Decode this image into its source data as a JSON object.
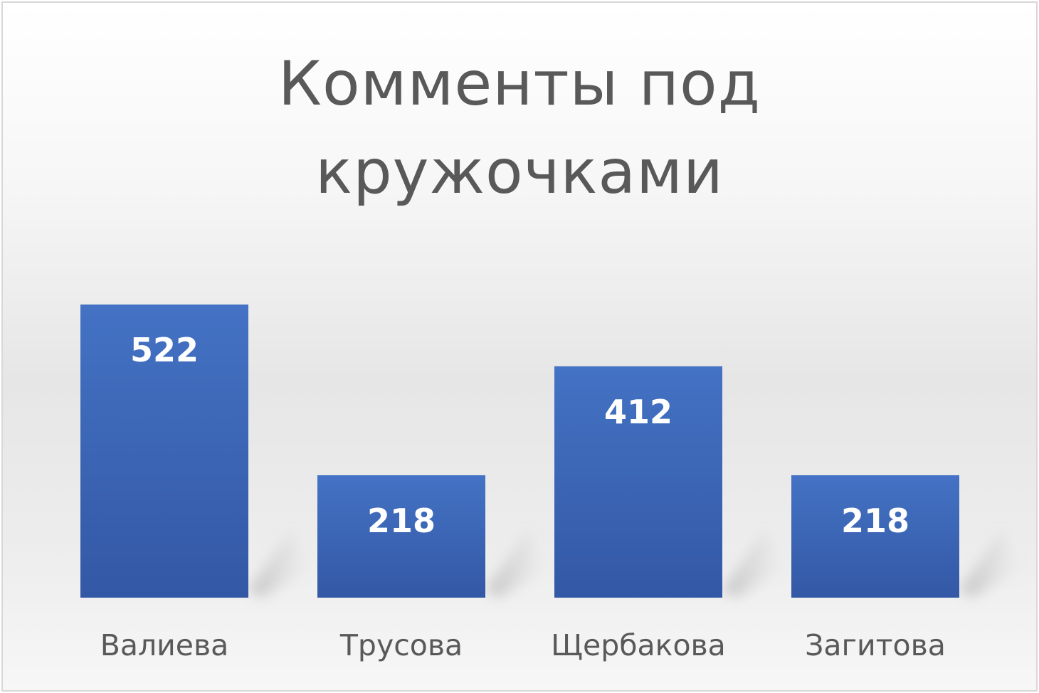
{
  "chart_data": {
    "type": "bar",
    "title_lines": [
      "Комменты под",
      "кружочками"
    ],
    "categories": [
      "Валиева",
      "Трусова",
      "Щербакова",
      "Загитова"
    ],
    "values": [
      522,
      218,
      412,
      218
    ],
    "data_labels": [
      "522",
      "218",
      "412",
      "218"
    ],
    "xlabel": "",
    "ylabel": "",
    "ylim": [
      0,
      522
    ],
    "grid": false,
    "legend": "none",
    "colors": {
      "bar_top": "#4472C4",
      "bar_bottom": "#3358A5",
      "label": "#ffffff",
      "category_label": "#595959",
      "title": "#595959"
    }
  }
}
